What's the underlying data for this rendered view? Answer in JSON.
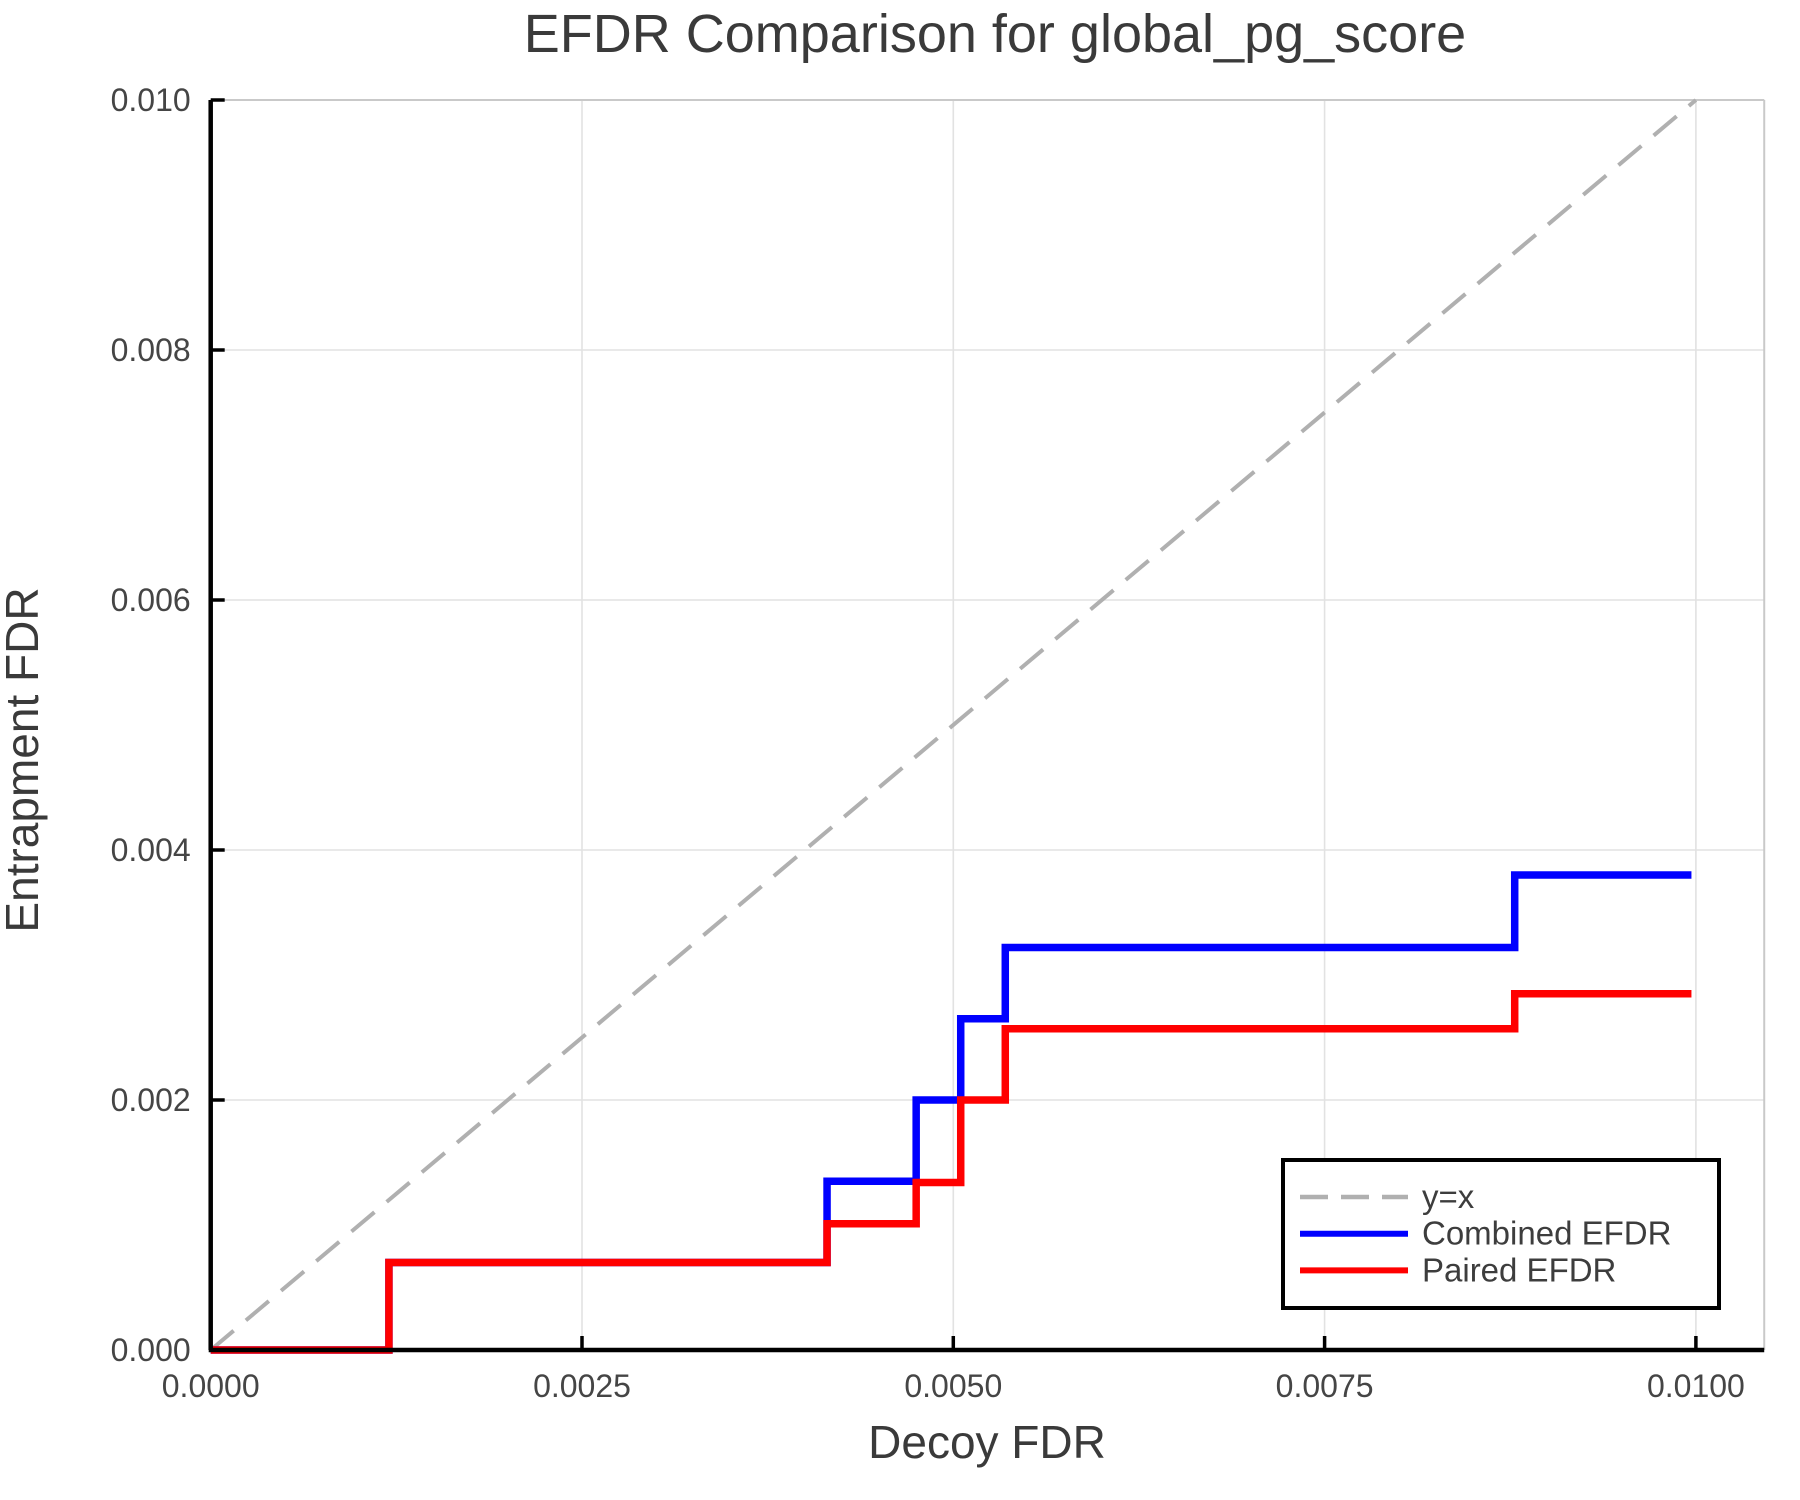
{
  "page": {
    "background": "#ffffff"
  },
  "chart_data": {
    "type": "line",
    "title": "EFDR Comparison for global_pg_score",
    "xlabel": "Decoy FDR",
    "ylabel": "Entrapment FDR",
    "xlim": [
      0,
      0.01046
    ],
    "ylim": [
      0,
      0.01
    ],
    "x_ticks": [
      0,
      0.0025,
      0.005,
      0.0075,
      0.01
    ],
    "x_tick_labels": [
      "0.0000",
      "0.0025",
      "0.0050",
      "0.0075",
      "0.0100"
    ],
    "y_ticks": [
      0,
      0.002,
      0.004,
      0.006,
      0.008,
      0.01
    ],
    "y_tick_labels": [
      "0.000",
      "0.002",
      "0.004",
      "0.006",
      "0.008",
      "0.010"
    ],
    "grid": true,
    "reference_line": {
      "label": "y=x",
      "x": [
        0,
        0.01
      ],
      "y": [
        0,
        0.01
      ],
      "color": "#b0b0b0",
      "style": "dashed"
    },
    "series": [
      {
        "name": "Combined EFDR",
        "color": "#0000ff",
        "style": "step",
        "x": [
          0,
          0.0012,
          0.00415,
          0.00475,
          0.00505,
          0.00535,
          0.00878,
          0.00997
        ],
        "y": [
          0,
          0.0007,
          0.00135,
          0.002,
          0.00265,
          0.00322,
          0.0038,
          0.0038
        ]
      },
      {
        "name": "Paired EFDR",
        "color": "#ff0000",
        "style": "step",
        "x": [
          0,
          0.0012,
          0.00415,
          0.00475,
          0.00505,
          0.00535,
          0.00878,
          0.00997
        ],
        "y": [
          0,
          0.0007,
          0.00101,
          0.00134,
          0.002,
          0.00257,
          0.00285,
          0.00285
        ]
      }
    ],
    "legend": {
      "position": "bottom-right",
      "items": [
        {
          "label": "y=x",
          "color": "#b0b0b0",
          "dashed": true
        },
        {
          "label": "Combined EFDR",
          "color": "#0000ff",
          "dashed": false
        },
        {
          "label": "Paired EFDR",
          "color": "#ff0000",
          "dashed": false
        }
      ]
    },
    "theme": {
      "grid_color": "#e2e2e2",
      "frame_color": "#c9c9c9",
      "spine_color": "#000000",
      "text_color": "#3a3a3a",
      "tick_text_color": "#454545",
      "legend_border_color": "#000000",
      "legend_background": "#ffffff"
    }
  }
}
